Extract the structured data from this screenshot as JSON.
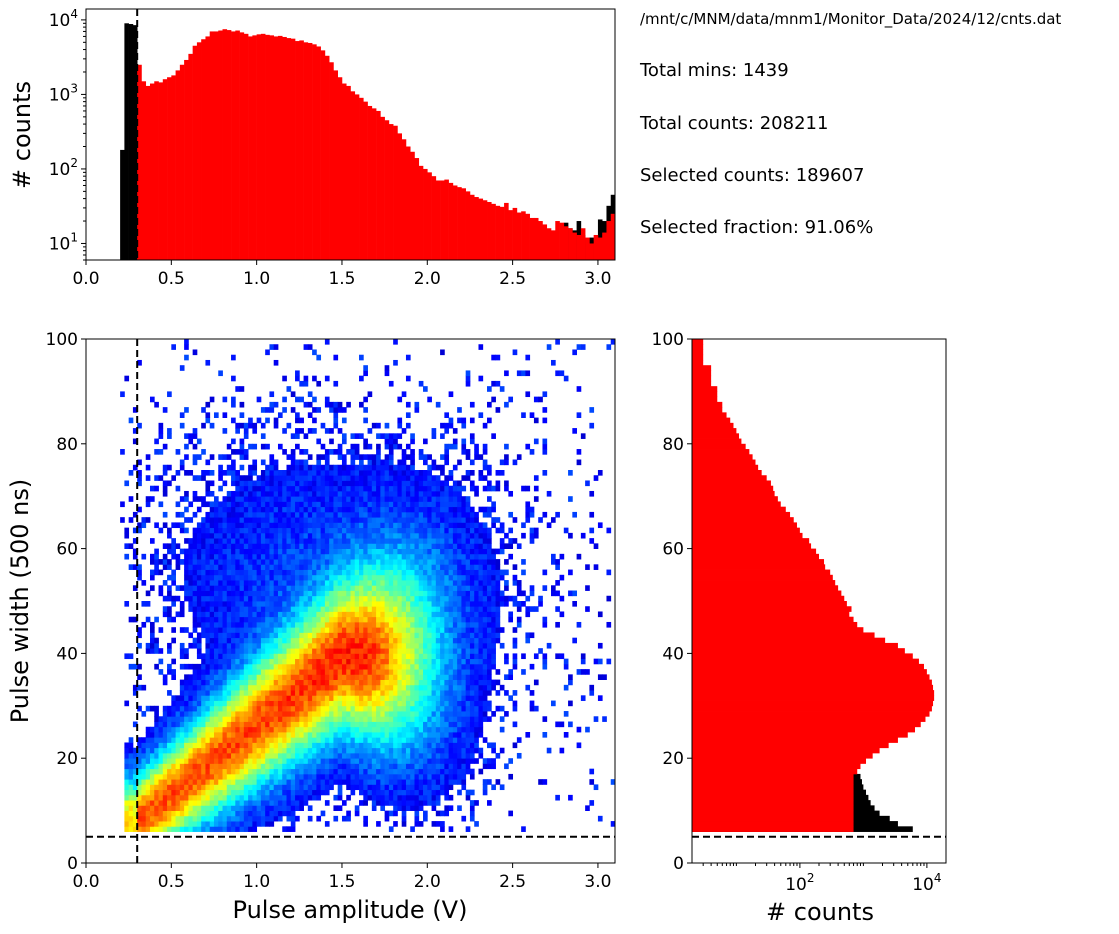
{
  "info": {
    "path": "/mnt/c/MNM/data/mnm1/Monitor_Data/2024/12/cnts.dat",
    "total_mins": "Total mins: 1439",
    "total_counts": "Total counts: 208211",
    "selected_counts": "Selected counts: 189607",
    "selected_fraction": "Selected fraction: 91.06%"
  },
  "colors": {
    "selected": "#ff0000",
    "rejected": "#000000",
    "cut_line": "#000000",
    "colormap": "jet"
  },
  "chart_data": [
    {
      "type": "bar",
      "name": "amplitude-histogram",
      "xlabel": "",
      "ylabel": "# counts",
      "xlim": [
        0,
        3.1
      ],
      "ylim": [
        6,
        14000
      ],
      "yscale": "log",
      "xticks": [
        "0.0",
        "0.5",
        "1.0",
        "1.5",
        "2.0",
        "2.5",
        "3.0"
      ],
      "yticks": [
        "10^1",
        "10^2",
        "10^3",
        "10^4"
      ],
      "cut_x": 0.3,
      "bin_width": 0.025,
      "x": [
        0.2,
        0.225,
        0.25,
        0.275,
        0.3,
        0.325,
        0.35,
        0.375,
        0.4,
        0.425,
        0.45,
        0.475,
        0.5,
        0.525,
        0.55,
        0.575,
        0.6,
        0.625,
        0.65,
        0.675,
        0.7,
        0.725,
        0.75,
        0.775,
        0.8,
        0.825,
        0.85,
        0.875,
        0.9,
        0.925,
        0.95,
        0.975,
        1.0,
        1.025,
        1.05,
        1.075,
        1.1,
        1.125,
        1.15,
        1.175,
        1.2,
        1.225,
        1.25,
        1.275,
        1.3,
        1.325,
        1.35,
        1.375,
        1.4,
        1.425,
        1.45,
        1.475,
        1.5,
        1.525,
        1.55,
        1.575,
        1.6,
        1.625,
        1.65,
        1.675,
        1.7,
        1.725,
        1.75,
        1.775,
        1.8,
        1.825,
        1.85,
        1.875,
        1.9,
        1.925,
        1.95,
        1.975,
        2.0,
        2.025,
        2.05,
        2.075,
        2.1,
        2.125,
        2.15,
        2.175,
        2.2,
        2.225,
        2.25,
        2.275,
        2.3,
        2.325,
        2.35,
        2.375,
        2.4,
        2.425,
        2.45,
        2.475,
        2.5,
        2.525,
        2.55,
        2.575,
        2.6,
        2.625,
        2.65,
        2.675,
        2.7,
        2.725,
        2.75,
        2.775,
        2.8,
        2.825,
        2.85,
        2.875,
        2.9,
        2.925,
        2.95,
        2.975,
        3.0,
        3.025,
        3.05,
        3.075
      ],
      "series": [
        {
          "name": "",
          "color": "#000000",
          "values": [
            180,
            9000,
            8800,
            8500,
            0,
            0,
            0,
            0,
            0,
            0,
            0,
            0,
            0,
            0,
            0,
            0,
            0,
            0,
            0,
            0,
            0,
            0,
            0,
            0,
            0,
            0,
            0,
            0,
            0,
            0,
            0,
            0,
            0,
            0,
            0,
            0,
            0,
            0,
            0,
            0,
            0,
            0,
            0,
            0,
            0,
            0,
            0,
            0,
            0,
            0,
            0,
            0,
            0,
            0,
            0,
            0,
            0,
            0,
            0,
            0,
            0,
            0,
            0,
            0,
            0,
            0,
            0,
            0,
            0,
            0,
            0,
            0,
            0,
            0,
            0,
            0,
            0,
            0,
            0,
            0,
            0,
            0,
            0,
            0,
            0,
            0,
            0,
            0,
            0,
            0,
            0,
            0,
            0,
            0,
            0,
            0,
            0,
            0,
            0,
            0,
            0,
            0,
            0,
            0,
            19,
            16,
            15,
            20,
            13,
            10,
            12,
            11,
            21,
            20,
            32,
            45
          ]
        },
        {
          "name": "",
          "color": "#ff0000",
          "values": [
            0,
            0,
            0,
            0,
            2500,
            1500,
            1300,
            1400,
            1500,
            1450,
            1600,
            1700,
            1800,
            2100,
            2500,
            2900,
            3500,
            4500,
            5000,
            5500,
            6000,
            7000,
            7000,
            7200,
            7500,
            7300,
            7000,
            7200,
            6800,
            6500,
            6000,
            6200,
            6400,
            6500,
            6300,
            6200,
            6000,
            6100,
            5900,
            5700,
            5600,
            5200,
            5300,
            5000,
            4900,
            4700,
            4400,
            3900,
            3300,
            2700,
            2100,
            1700,
            1400,
            1300,
            1100,
            1000,
            900,
            800,
            700,
            650,
            600,
            500,
            450,
            400,
            380,
            300,
            250,
            200,
            170,
            140,
            110,
            100,
            90,
            80,
            70,
            70,
            72,
            65,
            60,
            57,
            55,
            50,
            45,
            42,
            40,
            38,
            36,
            34,
            32,
            31,
            35,
            28,
            30,
            26,
            27,
            25,
            22,
            22,
            20,
            18,
            16,
            15,
            20,
            19,
            17,
            16,
            14,
            13,
            16,
            12,
            10,
            13,
            12,
            14,
            20,
            25
          ]
        }
      ]
    },
    {
      "type": "heatmap",
      "name": "amplitude-width-2d-histogram",
      "xlabel": "Pulse amplitude (V)",
      "ylabel": "Pulse width (500 ns)",
      "xlim": [
        0,
        3.1
      ],
      "ylim": [
        0,
        100
      ],
      "xticks": [
        "0.0",
        "0.5",
        "1.0",
        "1.5",
        "2.0",
        "2.5",
        "3.0"
      ],
      "yticks": [
        "0",
        "20",
        "40",
        "60",
        "80",
        "100"
      ],
      "colormap": "jet",
      "cut_x": 0.3,
      "cut_y": 5,
      "core": {
        "x": 1.15,
        "y": 34,
        "description": "peak density along a band rising from (0.3, 10) to (1.5, 40)"
      }
    },
    {
      "type": "bar",
      "name": "width-histogram",
      "orientation": "horizontal",
      "xlabel": "# counts",
      "ylabel": "",
      "xscale": "log",
      "xlim": [
        2,
        20000
      ],
      "ylim": [
        0,
        100
      ],
      "xticks": [
        "10^2",
        "10^4"
      ],
      "yticks": [
        "0",
        "20",
        "40",
        "60",
        "80",
        "100"
      ],
      "cut_y": 5,
      "y": [
        6,
        7,
        8,
        9,
        10,
        11,
        12,
        13,
        14,
        15,
        16,
        17,
        18,
        19,
        20,
        21,
        22,
        23,
        24,
        25,
        26,
        27,
        28,
        29,
        30,
        31,
        32,
        33,
        34,
        35,
        36,
        37,
        38,
        39,
        40,
        41,
        42,
        43,
        44,
        45,
        46,
        47,
        48,
        49,
        50,
        51,
        52,
        53,
        54,
        55,
        56,
        57,
        58,
        59,
        60,
        61,
        62,
        63,
        64,
        65,
        66,
        67,
        68,
        69,
        70,
        71,
        72,
        73,
        74,
        75,
        76,
        77,
        78,
        79,
        80,
        81,
        82,
        83,
        84,
        85,
        86,
        87,
        88,
        89,
        90,
        91,
        92,
        93,
        94,
        95,
        96,
        97,
        98,
        99
      ],
      "series": [
        {
          "name": "",
          "color": "#000000",
          "values": [
            6000,
            3500,
            2600,
            1800,
            1500,
            1300,
            1200,
            1100,
            1000,
            950,
            900,
            0,
            0,
            0,
            0,
            0,
            0,
            0,
            0,
            0,
            0,
            0,
            0,
            0,
            0,
            0,
            0,
            0,
            0,
            0,
            0,
            0,
            0,
            0,
            0,
            0,
            0,
            0,
            0,
            0,
            0,
            0,
            0,
            0,
            0,
            0,
            0,
            0,
            0,
            0,
            0,
            0,
            0,
            0,
            0,
            0,
            0,
            0,
            0,
            0,
            0,
            0,
            0,
            0,
            0,
            0,
            0,
            0,
            0,
            0,
            0,
            0,
            0,
            0,
            0,
            0,
            0,
            0,
            0,
            0,
            0,
            0,
            0,
            0,
            0,
            0,
            0,
            0,
            0,
            0,
            0,
            0,
            0,
            0
          ]
        },
        {
          "name": "",
          "color": "#ff0000",
          "values": [
            700,
            700,
            700,
            700,
            700,
            700,
            700,
            700,
            700,
            700,
            700,
            800,
            900,
            1100,
            1400,
            1800,
            2500,
            3500,
            5000,
            6500,
            8000,
            9500,
            11000,
            12000,
            12500,
            13000,
            13000,
            12500,
            12000,
            11000,
            10000,
            9000,
            7500,
            6000,
            4500,
            3500,
            2200,
            1500,
            1000,
            800,
            700,
            600,
            650,
            550,
            500,
            450,
            400,
            360,
            330,
            300,
            250,
            240,
            200,
            180,
            150,
            140,
            110,
            100,
            90,
            80,
            70,
            60,
            50,
            45,
            40,
            38,
            35,
            30,
            25,
            22,
            20,
            18,
            16,
            14,
            12,
            11,
            10,
            9,
            8,
            7,
            6,
            6,
            5,
            5,
            5,
            4,
            4,
            4,
            4,
            3,
            3,
            3,
            3,
            3
          ]
        }
      ]
    }
  ]
}
